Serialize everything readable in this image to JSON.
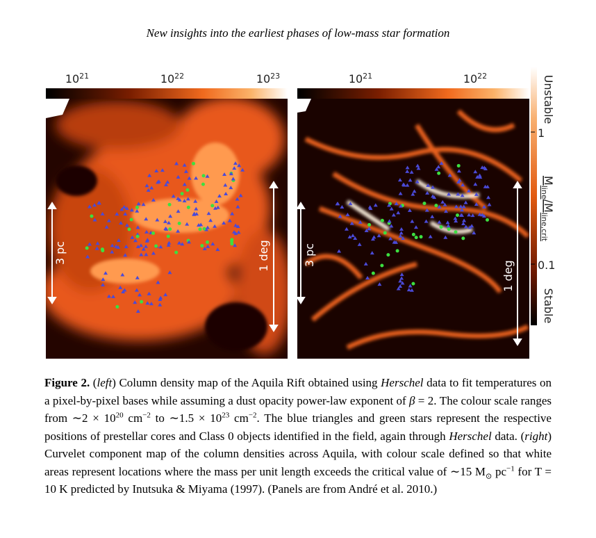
{
  "header": {
    "title": "New insights into the earliest phases of low-mass star formation"
  },
  "figure": {
    "left_panel": {
      "colorbar_labels": [
        {
          "base": "10",
          "exp": "21"
        },
        {
          "base": "10",
          "exp": "22"
        },
        {
          "base": "10",
          "exp": "23"
        }
      ],
      "scale_bar_1": "3 pc",
      "scale_bar_2": "1 deg"
    },
    "right_panel": {
      "colorbar_labels": [
        {
          "base": "10",
          "exp": "21"
        },
        {
          "base": "10",
          "exp": "22"
        }
      ],
      "scale_bar_1": "3 pc",
      "scale_bar_2": "1 deg",
      "side_colorbar": {
        "top_label": "Unstable",
        "tick_high": "1",
        "tick_low": "0.1",
        "bottom_label": "Stable",
        "quantity": [
          {
            "text": "M",
            "style": "normal"
          },
          {
            "text": "line",
            "style": "sub"
          },
          {
            "text": "/",
            "style": "normal"
          },
          {
            "text": "M",
            "style": "normal"
          },
          {
            "text": "line,crit",
            "style": "sub"
          }
        ]
      }
    }
  },
  "caption": [
    {
      "text": "Figure 2.",
      "style": "b"
    },
    {
      "text": "  (",
      "style": "n"
    },
    {
      "text": "left",
      "style": "i"
    },
    {
      "text": ") Column density map of the Aquila Rift obtained using ",
      "style": "n"
    },
    {
      "text": "Herschel",
      "style": "i"
    },
    {
      "text": " data to fit temperatures on a pixel-by-pixel bases while assuming a dust opacity power-law exponent of ",
      "style": "n"
    },
    {
      "text": "β",
      "style": "i"
    },
    {
      "text": " = 2. The colour scale ranges from ∼2 × 10",
      "style": "n"
    },
    {
      "text": "20",
      "style": "sup"
    },
    {
      "text": " cm",
      "style": "n"
    },
    {
      "text": "−2",
      "style": "sup"
    },
    {
      "text": " to ∼1.5 × 10",
      "style": "n"
    },
    {
      "text": "23",
      "style": "sup"
    },
    {
      "text": " cm",
      "style": "n"
    },
    {
      "text": "−2",
      "style": "sup"
    },
    {
      "text": ". The blue triangles and green stars represent the respective positions of prestellar cores and Class 0 objects identified in the field, again through ",
      "style": "n"
    },
    {
      "text": "Herschel",
      "style": "i"
    },
    {
      "text": " data. (",
      "style": "n"
    },
    {
      "text": "right",
      "style": "i"
    },
    {
      "text": ") Curvelet component map of the column densities across Aquila, with colour scale defined so that white areas represent locations where the mass per unit length exceeds the critical value of ∼15 M",
      "style": "n"
    },
    {
      "text": "⊙",
      "style": "sub"
    },
    {
      "text": " pc",
      "style": "n"
    },
    {
      "text": "−1",
      "style": "sup"
    },
    {
      "text": " for T = 10 K predicted by Inutsuka & Miyama (1997). (Panels are from André et al. 2010.)",
      "style": "n"
    }
  ]
}
